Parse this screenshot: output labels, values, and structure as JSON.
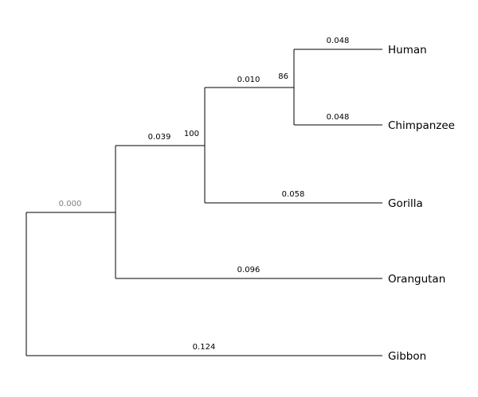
{
  "tree": {
    "taxa": [
      "Human",
      "Chimpanzee",
      "Gorilla",
      "Orangutan",
      "Gibbon"
    ],
    "root_branch_label": "0.000",
    "branches": [
      {
        "id": "human",
        "label": "0.048"
      },
      {
        "id": "chimpanzee",
        "label": "0.048"
      },
      {
        "id": "hc_clade",
        "label": "0.010"
      },
      {
        "id": "gorilla",
        "label": "0.058"
      },
      {
        "id": "hcg_clade",
        "label": "0.039"
      },
      {
        "id": "orangutan",
        "label": "0.096"
      },
      {
        "id": "gibbon",
        "label": "0.124"
      }
    ],
    "bootstrap": [
      {
        "node": "hc_node",
        "label": "86"
      },
      {
        "node": "hcg_node",
        "label": "100"
      }
    ]
  },
  "colors": {
    "line": "#000000",
    "text": "#000000",
    "root_label": "#808080",
    "background": "#ffffff"
  }
}
